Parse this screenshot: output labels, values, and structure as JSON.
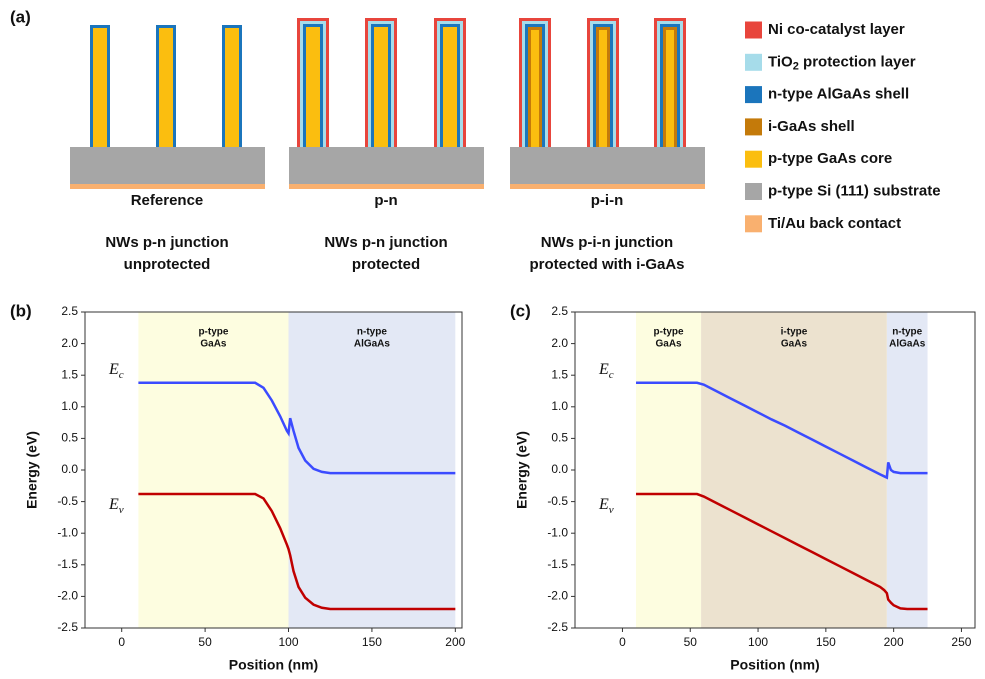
{
  "panel_a": {
    "label": "(a)",
    "structures": [
      {
        "name": "Reference",
        "description": [
          "NWs p-n junction",
          "unprotected"
        ]
      },
      {
        "name": "p-n",
        "description": [
          "NWs p-n junction",
          "protected"
        ]
      },
      {
        "name": "p-i-n",
        "description": [
          "NWs p-i-n junction",
          "protected with i-GaAs"
        ]
      }
    ],
    "legend": [
      {
        "label": "Ni co-catalyst layer",
        "color": "#e8453c"
      },
      {
        "label": "TiO2 protection layer",
        "color": "#a6dcea"
      },
      {
        "label": "n-type AlGaAs shell",
        "color": "#1b75bc"
      },
      {
        "label": "i-GaAs shell",
        "color": "#c47a0a"
      },
      {
        "label": "p-type GaAs core",
        "color": "#fbbe0f"
      },
      {
        "label": "p-type Si (111) substrate",
        "color": "#a6a6a6"
      },
      {
        "label": "Ti/Au back contact",
        "color": "#f9b06f"
      }
    ]
  },
  "chart_data": [
    {
      "type": "line",
      "panel_label": "(b)",
      "x_label": "Position (nm)",
      "y_label": "Energy (eV)",
      "xlim": [
        -22,
        204
      ],
      "ylim": [
        -2.5,
        2.5
      ],
      "xticks": [
        0,
        50,
        100,
        150,
        200
      ],
      "yticks": [
        -2.5,
        {
          "value": -2,
          "label": "-2.0"
        },
        -1.5,
        {
          "value": -1,
          "label": "-1.0"
        },
        -0.5,
        {
          "value": 0,
          "label": "0.0"
        },
        0.5,
        {
          "value": 1,
          "label": "1.0"
        },
        1.5,
        {
          "value": 2,
          "label": "2.0"
        },
        2.5
      ],
      "regions": [
        {
          "lines": [
            "p-type",
            "GaAs"
          ],
          "from": 10,
          "to": 100,
          "color": "#fdfde0"
        },
        {
          "lines": [
            "n-type",
            "AlGaAs"
          ],
          "from": 100,
          "to": 200,
          "color": "#e3e8f5"
        }
      ],
      "x": [
        10,
        20,
        30,
        40,
        50,
        60,
        70,
        80,
        85,
        90,
        95,
        99,
        100,
        101,
        103,
        106,
        110,
        115,
        120,
        125,
        130,
        140,
        150,
        160,
        170,
        180,
        190,
        200
      ],
      "series": [
        {
          "name": "Ec",
          "color": "#3b4bff",
          "values": [
            1.38,
            1.38,
            1.38,
            1.38,
            1.38,
            1.38,
            1.38,
            1.38,
            1.3,
            1.1,
            0.85,
            0.62,
            0.58,
            0.82,
            0.62,
            0.35,
            0.15,
            0.02,
            -0.03,
            -0.05,
            -0.05,
            -0.05,
            -0.05,
            -0.05,
            -0.05,
            -0.05,
            -0.05,
            -0.05
          ]
        },
        {
          "name": "Ev",
          "color": "#c00000",
          "values": [
            -0.38,
            -0.38,
            -0.38,
            -0.38,
            -0.38,
            -0.38,
            -0.38,
            -0.38,
            -0.45,
            -0.65,
            -0.92,
            -1.18,
            -1.25,
            -1.35,
            -1.6,
            -1.85,
            -2.02,
            -2.13,
            -2.18,
            -2.2,
            -2.2,
            -2.2,
            -2.2,
            -2.2,
            -2.2,
            -2.2,
            -2.2,
            -2.2
          ]
        }
      ]
    },
    {
      "type": "line",
      "panel_label": "(c)",
      "x_label": "Position (nm)",
      "y_label": "Energy (eV)",
      "xlim": [
        -35,
        260
      ],
      "ylim": [
        -2.5,
        2.5
      ],
      "xticks": [
        0,
        50,
        100,
        150,
        200,
        250
      ],
      "yticks": [
        -2.5,
        {
          "value": -2,
          "label": "-2.0"
        },
        -1.5,
        {
          "value": -1,
          "label": "-1.0"
        },
        -0.5,
        {
          "value": 0,
          "label": "0.0"
        },
        0.5,
        {
          "value": 1,
          "label": "1.0"
        },
        1.5,
        {
          "value": 2,
          "label": "2.0"
        },
        2.5
      ],
      "regions": [
        {
          "lines": [
            "p-type",
            "GaAs"
          ],
          "from": 10,
          "to": 58,
          "color": "#fdfde0"
        },
        {
          "lines": [
            "i-type",
            "GaAs"
          ],
          "from": 58,
          "to": 195,
          "color": "#ece2cf"
        },
        {
          "lines": [
            "n-type",
            "AlGaAs"
          ],
          "from": 195,
          "to": 225,
          "color": "#e3e8f5"
        }
      ],
      "x": [
        10,
        20,
        30,
        40,
        50,
        55,
        60,
        70,
        80,
        90,
        100,
        110,
        120,
        130,
        140,
        150,
        160,
        170,
        180,
        190,
        193,
        195,
        196,
        198,
        200,
        205,
        210,
        220,
        225
      ],
      "series": [
        {
          "name": "Ec",
          "color": "#3b4bff",
          "values": [
            1.38,
            1.38,
            1.38,
            1.38,
            1.38,
            1.38,
            1.35,
            1.24,
            1.13,
            1.02,
            0.91,
            0.8,
            0.7,
            0.59,
            0.48,
            0.37,
            0.26,
            0.15,
            0.04,
            -0.07,
            -0.1,
            -0.12,
            0.12,
            0.0,
            -0.03,
            -0.05,
            -0.05,
            -0.05,
            -0.05
          ]
        },
        {
          "name": "Ev",
          "color": "#c00000",
          "values": [
            -0.38,
            -0.38,
            -0.38,
            -0.38,
            -0.38,
            -0.38,
            -0.42,
            -0.53,
            -0.64,
            -0.75,
            -0.86,
            -0.97,
            -1.08,
            -1.19,
            -1.3,
            -1.41,
            -1.52,
            -1.63,
            -1.74,
            -1.85,
            -1.9,
            -1.95,
            -2.05,
            -2.1,
            -2.14,
            -2.19,
            -2.2,
            -2.2,
            -2.2
          ]
        }
      ]
    }
  ]
}
